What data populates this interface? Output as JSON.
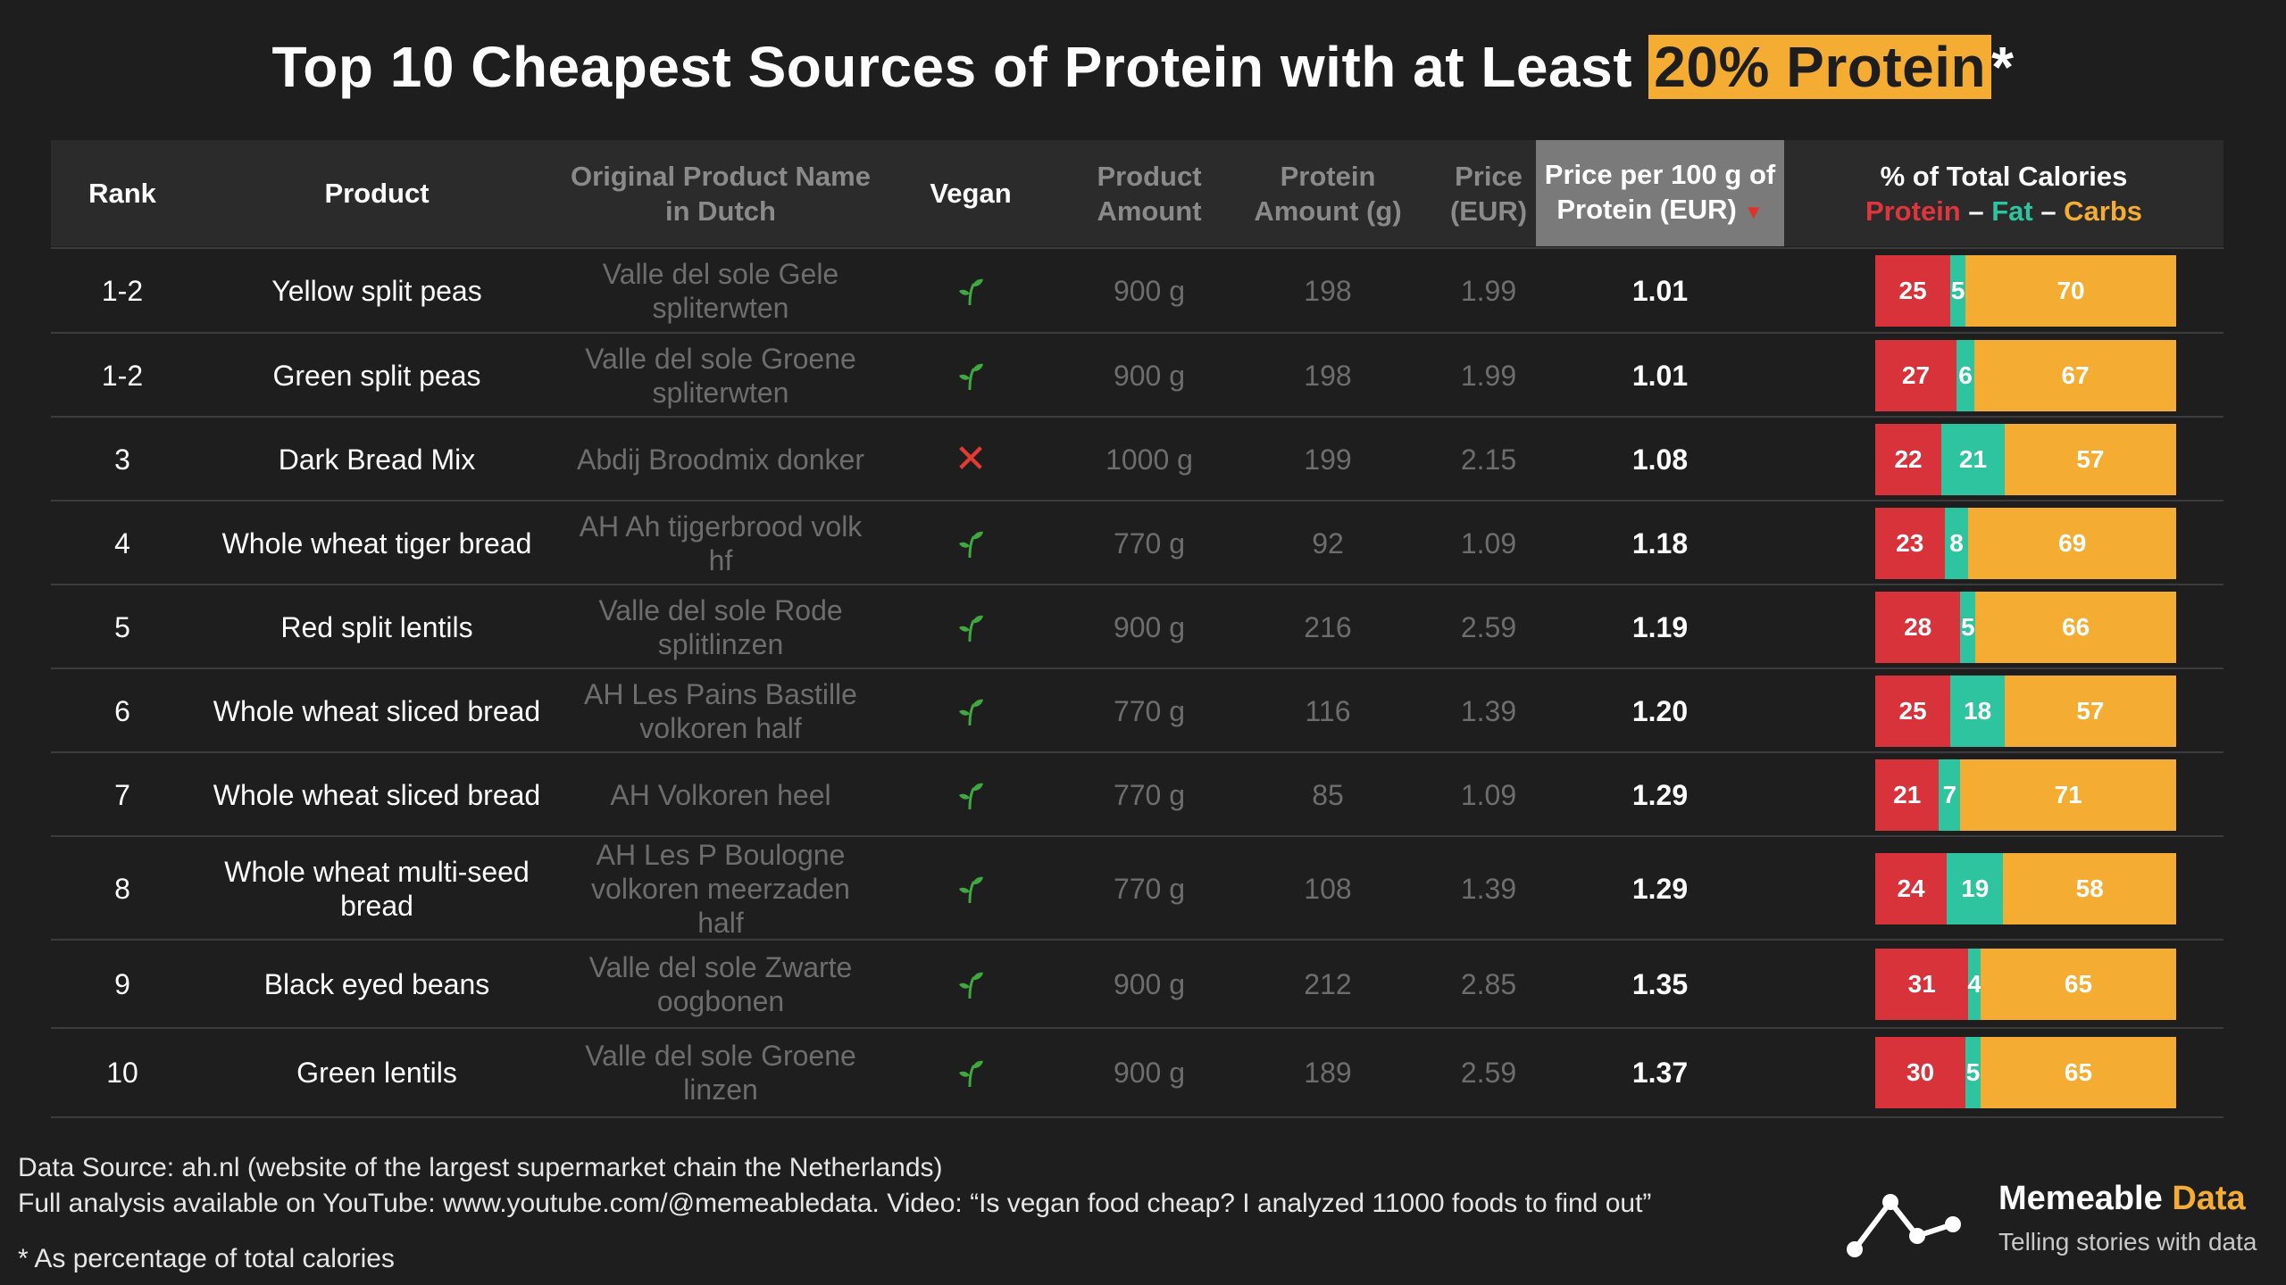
{
  "title": {
    "prefix": "Top 10 Cheapest Sources of Protein with at Least ",
    "highlight": "20% Protein",
    "suffix": "*"
  },
  "headers": {
    "rank": "Rank",
    "product": "Product",
    "dutch": "Original Product Name in Dutch",
    "vegan": "Vegan",
    "amount": "Product Amount",
    "protein": "Protein Amount (g)",
    "price": "Price (EUR)",
    "ppp": "Price per 100 g of Protein (EUR)",
    "calories_title": "% of Total Calories",
    "cal_protein": "Protein",
    "cal_sep1": " – ",
    "cal_fat": "Fat",
    "cal_sep2": " – ",
    "cal_carbs": "Carbs"
  },
  "colors": {
    "protein": "#d8323a",
    "fat": "#2ec4a0",
    "carbs": "#f4ad32",
    "sorted_header": "#7a7a7a"
  },
  "chart_data": {
    "type": "table",
    "columns": [
      "Rank",
      "Product",
      "Original Product Name in Dutch",
      "Vegan",
      "Product Amount",
      "Protein Amount (g)",
      "Price (EUR)",
      "Price per 100 g of Protein (EUR)",
      "% of Total Calories Protein – Fat – Carbs"
    ],
    "rows": [
      {
        "rank": "1-2",
        "product": "Yellow split peas",
        "dutch": "Valle del sole Gele spliterwten",
        "vegan": true,
        "amount": "900 g",
        "protein": "198",
        "price": "1.99",
        "ppp": "1.01",
        "protein_pct": 25,
        "fat_pct": 5,
        "carbs_pct": 70
      },
      {
        "rank": "1-2",
        "product": "Green split peas",
        "dutch": "Valle del sole Groene spliterwten",
        "vegan": true,
        "amount": "900 g",
        "protein": "198",
        "price": "1.99",
        "ppp": "1.01",
        "protein_pct": 27,
        "fat_pct": 6,
        "carbs_pct": 67
      },
      {
        "rank": "3",
        "product": "Dark Bread Mix",
        "dutch": "Abdij Broodmix donker",
        "vegan": false,
        "amount": "1000 g",
        "protein": "199",
        "price": "2.15",
        "ppp": "1.08",
        "protein_pct": 22,
        "fat_pct": 21,
        "carbs_pct": 57
      },
      {
        "rank": "4",
        "product": "Whole wheat tiger bread",
        "dutch": "AH Ah tijgerbrood volk hf",
        "vegan": true,
        "amount": "770 g",
        "protein": "92",
        "price": "1.09",
        "ppp": "1.18",
        "protein_pct": 23,
        "fat_pct": 8,
        "carbs_pct": 69
      },
      {
        "rank": "5",
        "product": "Red split lentils",
        "dutch": "Valle del sole Rode splitlinzen",
        "vegan": true,
        "amount": "900 g",
        "protein": "216",
        "price": "2.59",
        "ppp": "1.19",
        "protein_pct": 28,
        "fat_pct": 5,
        "carbs_pct": 66
      },
      {
        "rank": "6",
        "product": "Whole wheat sliced bread",
        "dutch": "AH Les Pains Bastille volkoren half",
        "vegan": true,
        "amount": "770 g",
        "protein": "116",
        "price": "1.39",
        "ppp": "1.20",
        "protein_pct": 25,
        "fat_pct": 18,
        "carbs_pct": 57
      },
      {
        "rank": "7",
        "product": "Whole wheat sliced bread",
        "dutch": "AH Volkoren heel",
        "vegan": true,
        "amount": "770 g",
        "protein": "85",
        "price": "1.09",
        "ppp": "1.29",
        "protein_pct": 21,
        "fat_pct": 7,
        "carbs_pct": 71
      },
      {
        "rank": "8",
        "product": "Whole wheat multi-seed bread",
        "dutch": "AH Les P Boulogne volkoren meerzaden half",
        "vegan": true,
        "amount": "770 g",
        "protein": "108",
        "price": "1.39",
        "ppp": "1.29",
        "protein_pct": 24,
        "fat_pct": 19,
        "carbs_pct": 58
      },
      {
        "rank": "9",
        "product": "Black eyed beans",
        "dutch": "Valle del sole Zwarte oogbonen",
        "vegan": true,
        "amount": "900 g",
        "protein": "212",
        "price": "2.85",
        "ppp": "1.35",
        "protein_pct": 31,
        "fat_pct": 4,
        "carbs_pct": 65
      },
      {
        "rank": "10",
        "product": "Green lentils",
        "dutch": "Valle del sole Groene linzen",
        "vegan": true,
        "amount": "900 g",
        "protein": "189",
        "price": "2.59",
        "ppp": "1.37",
        "protein_pct": 30,
        "fat_pct": 5,
        "carbs_pct": 65
      }
    ],
    "sorted_by": "Price per 100 g of Protein (EUR)",
    "sort_order": "ascending"
  },
  "footer": {
    "source": "Data Source: ah.nl (website of the largest supermarket chain the Netherlands)",
    "analysis": "Full analysis available on YouTube: www.youtube.com/@memeabledata. Video: “Is vegan food cheap? I analyzed 11000 foods to find out”",
    "note": "* As percentage of total calories"
  },
  "brand": {
    "name_main": "Memeable ",
    "name_accent": "Data",
    "tagline": "Telling stories with data"
  }
}
